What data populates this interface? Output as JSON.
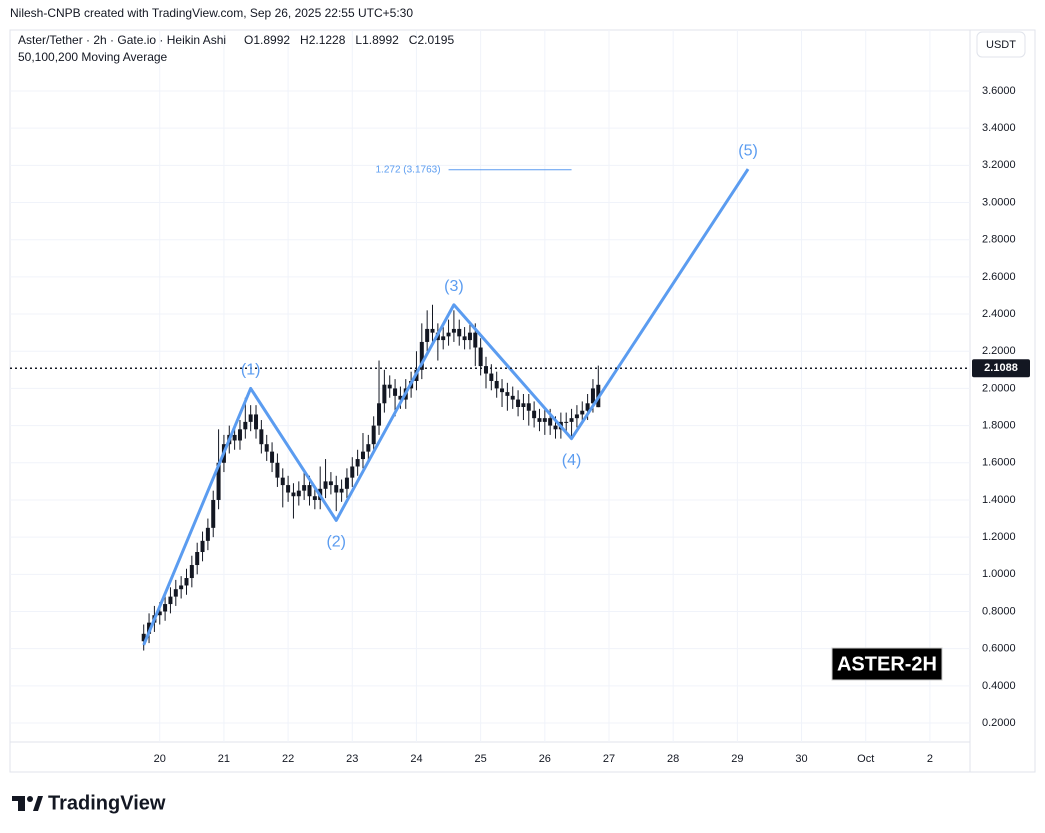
{
  "header": {
    "author_line": "Nilesh-CNPB created with TradingView.com, Sep 26, 2025 22:55 UTC+5:30",
    "symbol": "Aster/Tether · 2h · Gate.io · Heikin Ashi",
    "ohlc_text": "O1.8992   H2.1228   L1.8992   C2.0195",
    "indicator": "50,100,200 Moving Average",
    "currency": "USDT",
    "badge": "ASTER-2H",
    "logo": "TradingView"
  },
  "chart_data": {
    "type": "candlestick",
    "color": "#131722",
    "x": [
      -6,
      -4,
      -2,
      0,
      2,
      4,
      6,
      8,
      10,
      12,
      14,
      16,
      18,
      20,
      22,
      24,
      26,
      28,
      30,
      32,
      34,
      36,
      38,
      40,
      42,
      44,
      46,
      48,
      50,
      52,
      54,
      56,
      58,
      60,
      62,
      64,
      66,
      68,
      70,
      72,
      74,
      76,
      78,
      80,
      82,
      84,
      86,
      88,
      90,
      92,
      94,
      96,
      98,
      100,
      102,
      104,
      106,
      108,
      110,
      112,
      114,
      116,
      118,
      120,
      122,
      124,
      126,
      128,
      130,
      132,
      134,
      136,
      138,
      140,
      142,
      144,
      146,
      148,
      150,
      152,
      154,
      156,
      158,
      160,
      162,
      164
    ],
    "ohlc": [
      [
        0.64,
        0.73,
        0.59,
        0.68
      ],
      [
        0.68,
        0.79,
        0.63,
        0.74
      ],
      [
        0.74,
        0.83,
        0.69,
        0.78
      ],
      [
        0.78,
        0.85,
        0.73,
        0.8
      ],
      [
        0.8,
        0.89,
        0.75,
        0.84
      ],
      [
        0.84,
        0.93,
        0.79,
        0.88
      ],
      [
        0.88,
        0.97,
        0.83,
        0.92
      ],
      [
        0.92,
        0.99,
        0.87,
        0.94
      ],
      [
        0.94,
        1.03,
        0.89,
        0.98
      ],
      [
        0.98,
        1.1,
        0.93,
        1.05
      ],
      [
        1.05,
        1.17,
        1.0,
        1.12
      ],
      [
        1.12,
        1.23,
        1.07,
        1.18
      ],
      [
        1.18,
        1.3,
        1.13,
        1.25
      ],
      [
        1.25,
        1.45,
        1.2,
        1.4
      ],
      [
        1.4,
        1.78,
        1.35,
        1.6
      ],
      [
        1.6,
        1.75,
        1.55,
        1.7
      ],
      [
        1.7,
        1.8,
        1.65,
        1.75
      ],
      [
        1.75,
        1.8,
        1.67,
        1.72
      ],
      [
        1.72,
        1.83,
        1.67,
        1.78
      ],
      [
        1.78,
        1.95,
        1.73,
        1.82
      ],
      [
        1.82,
        1.91,
        1.77,
        1.86
      ],
      [
        1.86,
        1.91,
        1.73,
        1.78
      ],
      [
        1.78,
        1.83,
        1.65,
        1.7
      ],
      [
        1.7,
        1.75,
        1.61,
        1.66
      ],
      [
        1.66,
        1.71,
        1.55,
        1.6
      ],
      [
        1.6,
        1.65,
        1.47,
        1.52
      ],
      [
        1.52,
        1.57,
        1.36,
        1.48
      ],
      [
        1.48,
        1.53,
        1.39,
        1.44
      ],
      [
        1.44,
        1.49,
        1.3,
        1.42
      ],
      [
        1.42,
        1.5,
        1.37,
        1.45
      ],
      [
        1.45,
        1.55,
        1.4,
        1.48
      ],
      [
        1.48,
        1.53,
        1.37,
        1.42
      ],
      [
        1.42,
        1.47,
        1.35,
        1.4
      ],
      [
        1.4,
        1.58,
        1.35,
        1.46
      ],
      [
        1.46,
        1.62,
        1.41,
        1.5
      ],
      [
        1.5,
        1.55,
        1.43,
        1.48
      ],
      [
        1.48,
        1.53,
        1.34,
        1.44
      ],
      [
        1.44,
        1.51,
        1.39,
        1.46
      ],
      [
        1.46,
        1.57,
        1.41,
        1.52
      ],
      [
        1.52,
        1.63,
        1.47,
        1.58
      ],
      [
        1.58,
        1.67,
        1.53,
        1.62
      ],
      [
        1.62,
        1.76,
        1.57,
        1.66
      ],
      [
        1.66,
        1.75,
        1.61,
        1.7
      ],
      [
        1.7,
        1.85,
        1.65,
        1.8
      ],
      [
        1.8,
        2.15,
        1.75,
        1.92
      ],
      [
        1.92,
        2.1,
        1.87,
        2.02
      ],
      [
        2.02,
        2.07,
        1.95,
        2.0
      ],
      [
        2.0,
        2.05,
        1.85,
        1.96
      ],
      [
        1.96,
        2.01,
        1.89,
        1.94
      ],
      [
        1.94,
        2.05,
        1.89,
        2.0
      ],
      [
        2.0,
        2.09,
        1.95,
        2.04
      ],
      [
        2.04,
        2.2,
        1.99,
        2.1
      ],
      [
        2.1,
        2.35,
        2.05,
        2.25
      ],
      [
        2.25,
        2.42,
        2.2,
        2.32
      ],
      [
        2.32,
        2.45,
        2.25,
        2.3
      ],
      [
        2.3,
        2.35,
        2.15,
        2.26
      ],
      [
        2.26,
        2.33,
        2.21,
        2.28
      ],
      [
        2.28,
        2.37,
        2.23,
        2.3
      ],
      [
        2.3,
        2.42,
        2.25,
        2.32
      ],
      [
        2.32,
        2.37,
        2.23,
        2.28
      ],
      [
        2.28,
        2.33,
        2.21,
        2.26
      ],
      [
        2.26,
        2.35,
        2.21,
        2.3
      ],
      [
        2.3,
        2.35,
        2.12,
        2.22
      ],
      [
        2.22,
        2.27,
        2.07,
        2.12
      ],
      [
        2.12,
        2.17,
        2.0,
        2.08
      ],
      [
        2.08,
        2.13,
        1.99,
        2.04
      ],
      [
        2.04,
        2.09,
        1.95,
        2.0
      ],
      [
        2.0,
        2.05,
        1.9,
        1.98
      ],
      [
        1.98,
        2.03,
        1.88,
        1.96
      ],
      [
        1.96,
        2.01,
        1.89,
        1.94
      ],
      [
        1.94,
        1.99,
        1.85,
        1.9
      ],
      [
        1.9,
        1.97,
        1.83,
        1.92
      ],
      [
        1.92,
        1.97,
        1.8,
        1.88
      ],
      [
        1.88,
        1.93,
        1.79,
        1.84
      ],
      [
        1.84,
        1.89,
        1.77,
        1.82
      ],
      [
        1.82,
        1.89,
        1.75,
        1.84
      ],
      [
        1.84,
        1.89,
        1.75,
        1.8
      ],
      [
        1.8,
        1.85,
        1.73,
        1.78
      ],
      [
        1.78,
        1.87,
        1.73,
        1.82
      ],
      [
        1.82,
        1.87,
        1.77,
        1.82
      ],
      [
        1.82,
        1.89,
        1.74,
        1.84
      ],
      [
        1.84,
        1.91,
        1.79,
        1.86
      ],
      [
        1.86,
        1.93,
        1.81,
        1.88
      ],
      [
        1.88,
        1.97,
        1.83,
        1.92
      ],
      [
        1.92,
        2.05,
        1.87,
        2.0
      ],
      [
        1.8992,
        2.1228,
        1.8992,
        2.0195
      ]
    ],
    "waves": {
      "color": "#5b9cf0",
      "x": [
        -6,
        34,
        66,
        110,
        154,
        220
      ],
      "values": [
        0.62,
        2.0,
        1.29,
        2.45,
        1.73,
        3.18
      ],
      "labels": [
        null,
        "(1)",
        "(2)",
        "(3)",
        "(4)",
        "(5)"
      ]
    },
    "fib": {
      "label": "1.272 (3.1763)",
      "x": [
        108,
        154
      ],
      "value": 3.1763
    },
    "last_price": 2.1088,
    "xlim": [
      -56,
      303
    ],
    "ylim": [
      0.098,
      3.928
    ],
    "xticks": [
      {
        "value": 0,
        "label": "20"
      },
      {
        "value": 24,
        "label": "21"
      },
      {
        "value": 48,
        "label": "22"
      },
      {
        "value": 72,
        "label": "23"
      },
      {
        "value": 96,
        "label": "24"
      },
      {
        "value": 120,
        "label": "25"
      },
      {
        "value": 144,
        "label": "26"
      },
      {
        "value": 168,
        "label": "27"
      },
      {
        "value": 192,
        "label": "28"
      },
      {
        "value": 216,
        "label": "29"
      },
      {
        "value": 240,
        "label": "30"
      },
      {
        "value": 264,
        "label": "Oct"
      },
      {
        "value": 288,
        "label": "2"
      }
    ],
    "yticks": [
      {
        "value": 0.2,
        "label": "0.2000"
      },
      {
        "value": 0.4,
        "label": "0.4000"
      },
      {
        "value": 0.6,
        "label": "0.6000"
      },
      {
        "value": 0.8,
        "label": "0.8000"
      },
      {
        "value": 1.0,
        "label": "1.0000"
      },
      {
        "value": 1.2,
        "label": "1.2000"
      },
      {
        "value": 1.4,
        "label": "1.4000"
      },
      {
        "value": 1.6,
        "label": "1.6000"
      },
      {
        "value": 1.8,
        "label": "1.8000"
      },
      {
        "value": 2.0,
        "label": "2.0000"
      },
      {
        "value": 2.2,
        "label": "2.2000"
      },
      {
        "value": 2.4,
        "label": "2.4000"
      },
      {
        "value": 2.6,
        "label": "2.6000"
      },
      {
        "value": 2.8,
        "label": "2.8000"
      },
      {
        "value": 3.0,
        "label": "3.0000"
      },
      {
        "value": 3.2,
        "label": "3.2000"
      },
      {
        "value": 3.4,
        "label": "3.4000"
      },
      {
        "value": 3.6,
        "label": "3.6000"
      }
    ],
    "grid": true
  }
}
